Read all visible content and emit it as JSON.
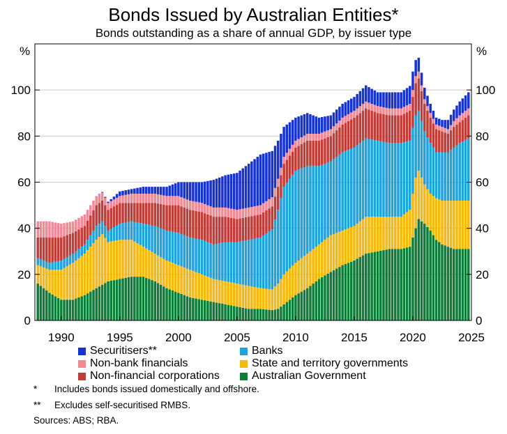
{
  "chart_data": {
    "type": "stacked-bar",
    "title": "Bonds Issued by Australian Entities*",
    "subtitle": "Bonds outstanding as a share of annual GDP, by issuer type",
    "ylabel_left": "%",
    "ylabel_right": "%",
    "ylim": [
      0,
      120
    ],
    "yticks": [
      0,
      20,
      40,
      60,
      80,
      100
    ],
    "xlim": [
      1987.75,
      2025.0
    ],
    "xticks": [
      1990,
      1995,
      2000,
      2005,
      2010,
      2015,
      2020,
      2025
    ],
    "frequency": "quarterly",
    "series_order": [
      "australian_government",
      "state_territory",
      "banks",
      "nonfinancial_corporations",
      "nonbank_financials",
      "securitisers"
    ],
    "series": [
      {
        "key": "australian_government",
        "name": "Australian Government",
        "color": "#0e7d3a"
      },
      {
        "key": "state_territory",
        "name": "State and territory governments",
        "color": "#f6b90f"
      },
      {
        "key": "banks",
        "name": "Banks",
        "color": "#1fa3dc"
      },
      {
        "key": "nonfinancial_corporations",
        "name": "Non-financial corporations",
        "color": "#c23c38"
      },
      {
        "key": "nonbank_financials",
        "name": "Non-bank financials",
        "color": "#f28a96"
      },
      {
        "key": "securitisers",
        "name": "Securitisers**",
        "color": "#1632d0"
      }
    ],
    "anchors": {
      "australian_government": [
        [
          1988.0,
          16
        ],
        [
          1989.0,
          12
        ],
        [
          1990.0,
          9
        ],
        [
          1991.0,
          9
        ],
        [
          1992.0,
          11
        ],
        [
          1993.0,
          14
        ],
        [
          1994.0,
          17
        ],
        [
          1995.0,
          18
        ],
        [
          1996.0,
          19
        ],
        [
          1997.0,
          19
        ],
        [
          1998.0,
          17
        ],
        [
          1999.0,
          14
        ],
        [
          2000.0,
          12
        ],
        [
          2001.0,
          10
        ],
        [
          2002.0,
          9
        ],
        [
          2003.0,
          8
        ],
        [
          2004.0,
          7
        ],
        [
          2005.0,
          6
        ],
        [
          2006.0,
          5
        ],
        [
          2007.0,
          5
        ],
        [
          2008.0,
          4.5
        ],
        [
          2008.5,
          5
        ],
        [
          2009.0,
          7
        ],
        [
          2010.0,
          11
        ],
        [
          2011.0,
          14
        ],
        [
          2012.0,
          18
        ],
        [
          2013.0,
          21
        ],
        [
          2014.0,
          24
        ],
        [
          2015.0,
          26
        ],
        [
          2016.0,
          29
        ],
        [
          2017.0,
          30
        ],
        [
          2018.0,
          31
        ],
        [
          2019.0,
          31
        ],
        [
          2019.75,
          32
        ],
        [
          2020.25,
          40
        ],
        [
          2020.5,
          44
        ],
        [
          2021.0,
          42
        ],
        [
          2021.5,
          39
        ],
        [
          2022.0,
          35
        ],
        [
          2022.5,
          33
        ],
        [
          2023.0,
          32
        ],
        [
          2023.5,
          31
        ],
        [
          2024.0,
          31
        ],
        [
          2024.75,
          31
        ]
      ],
      "state_territory": [
        [
          1988.0,
          8
        ],
        [
          1989.0,
          10
        ],
        [
          1990.0,
          13
        ],
        [
          1991.0,
          16
        ],
        [
          1992.0,
          18
        ],
        [
          1993.0,
          21
        ],
        [
          1993.5,
          22
        ],
        [
          1994.0,
          17
        ],
        [
          1995.0,
          17
        ],
        [
          1996.0,
          16
        ],
        [
          1997.0,
          13
        ],
        [
          1998.0,
          12
        ],
        [
          1999.0,
          12
        ],
        [
          2000.0,
          12
        ],
        [
          2001.0,
          12
        ],
        [
          2002.0,
          11
        ],
        [
          2003.0,
          10
        ],
        [
          2004.0,
          10
        ],
        [
          2005.0,
          10
        ],
        [
          2006.0,
          10
        ],
        [
          2007.0,
          9
        ],
        [
          2008.0,
          9
        ],
        [
          2009.0,
          13
        ],
        [
          2010.0,
          14
        ],
        [
          2011.0,
          15
        ],
        [
          2012.0,
          15
        ],
        [
          2013.0,
          16
        ],
        [
          2014.0,
          15
        ],
        [
          2015.0,
          15
        ],
        [
          2016.0,
          16
        ],
        [
          2017.0,
          15
        ],
        [
          2018.0,
          14
        ],
        [
          2019.0,
          14
        ],
        [
          2019.75,
          16
        ],
        [
          2020.25,
          22
        ],
        [
          2020.5,
          21
        ],
        [
          2021.0,
          17
        ],
        [
          2021.5,
          16
        ],
        [
          2022.0,
          18
        ],
        [
          2022.5,
          19
        ],
        [
          2023.0,
          20
        ],
        [
          2023.5,
          21
        ],
        [
          2024.0,
          21
        ],
        [
          2024.75,
          21
        ]
      ],
      "banks": [
        [
          1988.0,
          3
        ],
        [
          1989.0,
          3
        ],
        [
          1990.0,
          4
        ],
        [
          1991.0,
          4
        ],
        [
          1992.0,
          4
        ],
        [
          1993.0,
          6
        ],
        [
          1994.0,
          5
        ],
        [
          1995.0,
          7
        ],
        [
          1996.0,
          8
        ],
        [
          1997.0,
          10
        ],
        [
          1998.0,
          12
        ],
        [
          1999.0,
          13
        ],
        [
          2000.0,
          14
        ],
        [
          2001.0,
          14
        ],
        [
          2002.0,
          15
        ],
        [
          2003.0,
          15
        ],
        [
          2004.0,
          17
        ],
        [
          2005.0,
          18
        ],
        [
          2006.0,
          20
        ],
        [
          2007.0,
          22
        ],
        [
          2008.0,
          26
        ],
        [
          2008.5,
          32
        ],
        [
          2009.0,
          38
        ],
        [
          2010.0,
          40
        ],
        [
          2011.0,
          38
        ],
        [
          2012.0,
          34
        ],
        [
          2013.0,
          32
        ],
        [
          2014.0,
          34
        ],
        [
          2015.0,
          34
        ],
        [
          2016.0,
          34
        ],
        [
          2017.0,
          33
        ],
        [
          2018.0,
          32
        ],
        [
          2019.0,
          32
        ],
        [
          2019.75,
          30
        ],
        [
          2020.25,
          27
        ],
        [
          2020.5,
          26
        ],
        [
          2021.0,
          23
        ],
        [
          2021.5,
          22
        ],
        [
          2022.0,
          20
        ],
        [
          2022.5,
          21
        ],
        [
          2023.0,
          21
        ],
        [
          2023.5,
          23
        ],
        [
          2024.0,
          25
        ],
        [
          2024.75,
          27
        ]
      ],
      "nonfinancial_corporations": [
        [
          1988.0,
          9
        ],
        [
          1989.0,
          11
        ],
        [
          1990.0,
          10
        ],
        [
          1991.0,
          9
        ],
        [
          1992.0,
          8
        ],
        [
          1993.0,
          9
        ],
        [
          1994.0,
          9
        ],
        [
          1995.0,
          9
        ],
        [
          1996.0,
          8
        ],
        [
          1997.0,
          9
        ],
        [
          1998.0,
          10
        ],
        [
          1999.0,
          11
        ],
        [
          2000.0,
          12
        ],
        [
          2001.0,
          12
        ],
        [
          2002.0,
          12
        ],
        [
          2003.0,
          12
        ],
        [
          2004.0,
          11
        ],
        [
          2005.0,
          10
        ],
        [
          2006.0,
          10
        ],
        [
          2007.0,
          10
        ],
        [
          2008.0,
          10
        ],
        [
          2009.0,
          10
        ],
        [
          2010.0,
          10
        ],
        [
          2011.0,
          11
        ],
        [
          2012.0,
          11
        ],
        [
          2013.0,
          11
        ],
        [
          2014.0,
          12
        ],
        [
          2015.0,
          13
        ],
        [
          2016.0,
          13
        ],
        [
          2017.0,
          12
        ],
        [
          2018.0,
          12
        ],
        [
          2019.0,
          12
        ],
        [
          2019.75,
          13
        ],
        [
          2020.25,
          14
        ],
        [
          2020.5,
          14
        ],
        [
          2021.0,
          12
        ],
        [
          2021.5,
          11
        ],
        [
          2022.0,
          10
        ],
        [
          2022.5,
          9
        ],
        [
          2023.0,
          8
        ],
        [
          2023.5,
          9
        ],
        [
          2024.0,
          9
        ],
        [
          2024.75,
          10
        ]
      ],
      "nonbank_financials": [
        [
          1988.0,
          7
        ],
        [
          1989.0,
          7
        ],
        [
          1990.0,
          6
        ],
        [
          1991.0,
          5
        ],
        [
          1992.0,
          5
        ],
        [
          1993.0,
          4
        ],
        [
          1994.0,
          3
        ],
        [
          1995.0,
          3
        ],
        [
          1996.0,
          4
        ],
        [
          1997.0,
          4
        ],
        [
          1998.0,
          4
        ],
        [
          1999.0,
          4
        ],
        [
          2000.0,
          4
        ],
        [
          2001.0,
          4
        ],
        [
          2002.0,
          4
        ],
        [
          2003.0,
          4
        ],
        [
          2004.0,
          4
        ],
        [
          2005.0,
          4
        ],
        [
          2006.0,
          4
        ],
        [
          2007.0,
          4
        ],
        [
          2008.0,
          4
        ],
        [
          2009.0,
          3
        ],
        [
          2010.0,
          3
        ],
        [
          2011.0,
          3
        ],
        [
          2012.0,
          3
        ],
        [
          2013.0,
          3
        ],
        [
          2014.0,
          3
        ],
        [
          2015.0,
          3
        ],
        [
          2016.0,
          3
        ],
        [
          2017.0,
          3
        ],
        [
          2018.0,
          3
        ],
        [
          2019.0,
          3
        ],
        [
          2020.0,
          3
        ],
        [
          2020.5,
          3
        ],
        [
          2021.0,
          2
        ],
        [
          2022.0,
          2
        ],
        [
          2023.0,
          2
        ],
        [
          2024.0,
          3
        ],
        [
          2024.75,
          3
        ]
      ],
      "securitisers": [
        [
          1988.0,
          0
        ],
        [
          1992.0,
          0
        ],
        [
          1993.0,
          0
        ],
        [
          1994.0,
          0.5
        ],
        [
          1995.0,
          2
        ],
        [
          1996.0,
          2
        ],
        [
          1997.0,
          3
        ],
        [
          1998.0,
          3
        ],
        [
          1999.0,
          4
        ],
        [
          2000.0,
          6
        ],
        [
          2001.0,
          8
        ],
        [
          2002.0,
          9
        ],
        [
          2003.0,
          12
        ],
        [
          2004.0,
          14
        ],
        [
          2005.0,
          16
        ],
        [
          2006.0,
          19
        ],
        [
          2007.0,
          22
        ],
        [
          2008.0,
          20
        ],
        [
          2009.0,
          13
        ],
        [
          2010.0,
          10
        ],
        [
          2011.0,
          9
        ],
        [
          2012.0,
          7
        ],
        [
          2013.0,
          6
        ],
        [
          2014.0,
          6
        ],
        [
          2015.0,
          6
        ],
        [
          2016.0,
          7
        ],
        [
          2017.0,
          6
        ],
        [
          2018.0,
          7
        ],
        [
          2019.0,
          7
        ],
        [
          2020.0,
          8
        ],
        [
          2020.5,
          6
        ],
        [
          2021.0,
          5
        ],
        [
          2021.5,
          4
        ],
        [
          2022.0,
          3
        ],
        [
          2022.5,
          3
        ],
        [
          2023.0,
          4
        ],
        [
          2023.5,
          5
        ],
        [
          2024.0,
          6
        ],
        [
          2024.75,
          7
        ]
      ]
    }
  },
  "legend": {
    "securitisers": "Securitisers**",
    "nonbank_financials": "Non-bank financials",
    "nonfinancial_corporations": "Non-financial corporations",
    "banks": "Banks",
    "state_territory": "State and territory governments",
    "australian_government": "Australian Government"
  },
  "notes": {
    "note1_marker": "*",
    "note1_text": "Includes bonds issued domestically and offshore.",
    "note2_marker": "**",
    "note2_text": "Excludes self-securitised RMBS.",
    "sources": "Sources:  ABS; RBA."
  }
}
